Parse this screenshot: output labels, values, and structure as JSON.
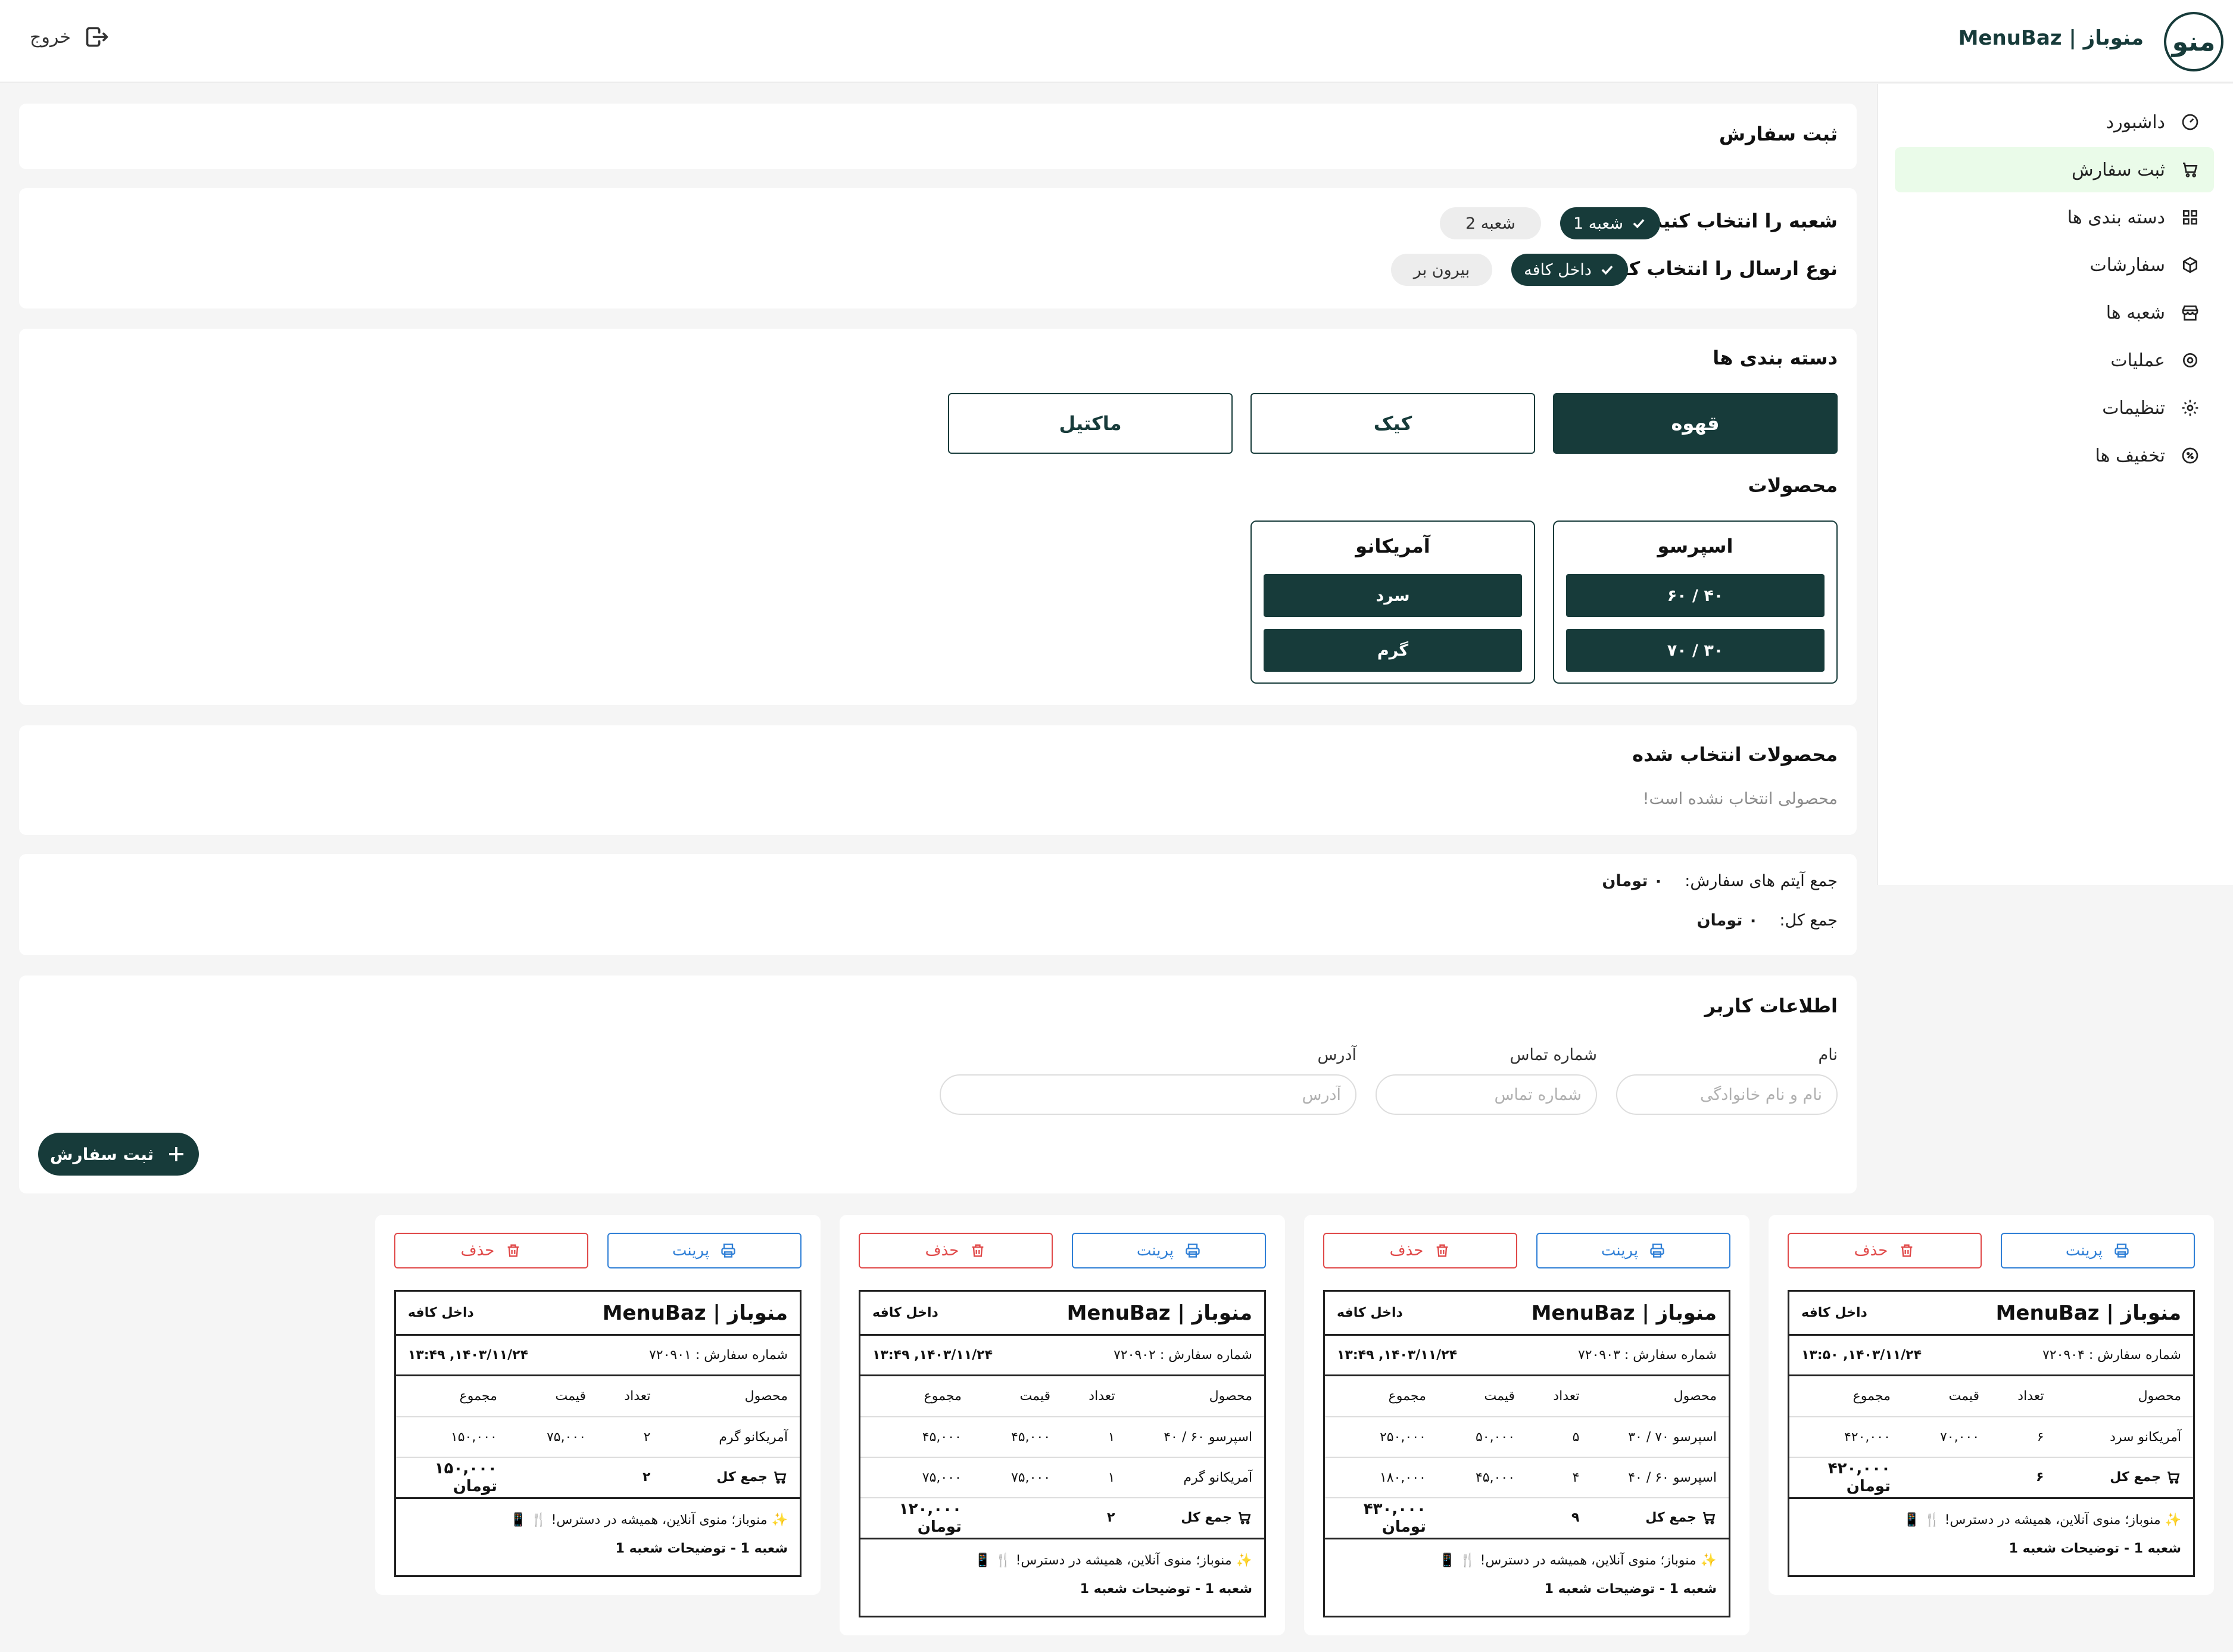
{
  "header": {
    "logo_text": "منو",
    "brand": "منوباز | MenuBaz",
    "logout_label": "خروج"
  },
  "sidebar": {
    "items": [
      {
        "label": "داشبورد",
        "icon": "gauge-icon"
      },
      {
        "label": "ثبت سفارش",
        "icon": "cart-icon",
        "active": true
      },
      {
        "label": "دسته بندی ها",
        "icon": "grid-icon"
      },
      {
        "label": "سفارشات",
        "icon": "box-icon"
      },
      {
        "label": "شعبه ها",
        "icon": "store-icon"
      },
      {
        "label": "عملیات",
        "icon": "gear-icon"
      },
      {
        "label": "تنظیمات",
        "icon": "settings-icon"
      },
      {
        "label": "تخفیف ها",
        "icon": "discount-icon"
      }
    ]
  },
  "page": {
    "title": "ثبت سفارش"
  },
  "branch_select": {
    "label": "شعبه را انتخاب کنید:",
    "options": [
      "شعبه 1",
      "شعبه 2"
    ],
    "selected": "شعبه 1"
  },
  "delivery_select": {
    "label": "نوع ارسال را انتخاب کنید:",
    "options": [
      "داخل کافه",
      "بیرون بر"
    ],
    "selected": "داخل کافه"
  },
  "categories": {
    "title": "دسته بندی ها",
    "items": [
      "قهوه",
      "کیک",
      "ماکتیل"
    ],
    "selected": "قهوه"
  },
  "products": {
    "title": "محصولات",
    "items": [
      {
        "name": "اسپرسو",
        "variants": [
          "۶۰ / ۴۰",
          "۷۰ / ۳۰"
        ]
      },
      {
        "name": "آمریکانو",
        "variants": [
          "سرد",
          "گرم"
        ]
      }
    ]
  },
  "selected_products": {
    "title": "محصولات انتخاب شده",
    "empty_text": "محصولی انتخاب نشده است!"
  },
  "summary": {
    "items_label": "جمع آیتم های سفارش:",
    "items_value": "۰ تومان",
    "total_label": "جمع کل:",
    "total_value": "۰ تومان"
  },
  "user_info": {
    "title": "اطلاعات کاربر",
    "name_label": "نام",
    "name_placeholder": "نام و نام خانوادگی",
    "phone_label": "شماره تماس",
    "phone_placeholder": "شماره تماس",
    "address_label": "آدرس",
    "address_placeholder": "آدرس",
    "submit_label": "ثبت سفارش"
  },
  "receipt_labels": {
    "print": "پرینت",
    "delete": "حذف",
    "brand": "منوباز | MenuBaz",
    "col_product": "محصول",
    "col_qty": "تعداد",
    "col_price": "قیمت",
    "col_sum": "مجموع",
    "total_label": "جمع کل",
    "footer": "✨ منوباز؛ منوی آنلاین، همیشه در دسترس! 🍴 📱"
  },
  "receipts": [
    {
      "mode": "داخل کافه",
      "order_no": "شماره سفارش : ۷۲۰۹۰۴",
      "datetime": "۱۴۰۳/۱۱/۲۴, ۱۳:۵۰",
      "rows": [
        {
          "product": "آمریکانو سرد",
          "qty": "۶",
          "price": "۷۰,۰۰۰",
          "sum": "۴۲۰,۰۰۰"
        }
      ],
      "total_qty": "۶",
      "total": "۴۲۰,۰۰۰ تومان",
      "branch_note": "شعبه 1 - توضیحات شعبه 1"
    },
    {
      "mode": "داخل کافه",
      "order_no": "شماره سفارش : ۷۲۰۹۰۳",
      "datetime": "۱۴۰۳/۱۱/۲۴, ۱۳:۴۹",
      "rows": [
        {
          "product": "اسپرسو ۷۰ / ۳۰",
          "qty": "۵",
          "price": "۵۰,۰۰۰",
          "sum": "۲۵۰,۰۰۰"
        },
        {
          "product": "اسپرسو ۶۰ / ۴۰",
          "qty": "۴",
          "price": "۴۵,۰۰۰",
          "sum": "۱۸۰,۰۰۰"
        }
      ],
      "total_qty": "۹",
      "total": "۴۳۰,۰۰۰ تومان",
      "branch_note": "شعبه 1 - توضیحات شعبه 1"
    },
    {
      "mode": "داخل کافه",
      "order_no": "شماره سفارش : ۷۲۰۹۰۲",
      "datetime": "۱۴۰۳/۱۱/۲۴, ۱۳:۴۹",
      "rows": [
        {
          "product": "اسپرسو ۶۰ / ۴۰",
          "qty": "۱",
          "price": "۴۵,۰۰۰",
          "sum": "۴۵,۰۰۰"
        },
        {
          "product": "آمریکانو گرم",
          "qty": "۱",
          "price": "۷۵,۰۰۰",
          "sum": "۷۵,۰۰۰"
        }
      ],
      "total_qty": "۲",
      "total": "۱۲۰,۰۰۰ تومان",
      "branch_note": "شعبه 1 - توضیحات شعبه 1"
    },
    {
      "mode": "داخل کافه",
      "order_no": "شماره سفارش : ۷۲۰۹۰۱",
      "datetime": "۱۴۰۳/۱۱/۲۴, ۱۳:۴۹",
      "rows": [
        {
          "product": "آمریکانو گرم",
          "qty": "۲",
          "price": "۷۵,۰۰۰",
          "sum": "۱۵۰,۰۰۰"
        }
      ],
      "total_qty": "۲",
      "total": "۱۵۰,۰۰۰ تومان",
      "branch_note": "شعبه 1 - توضیحات شعبه 1"
    }
  ],
  "colors": {
    "primary": "#173b3a",
    "active_nav": "#eafbe9",
    "print": "#2f7fd6",
    "delete": "#e04848"
  }
}
